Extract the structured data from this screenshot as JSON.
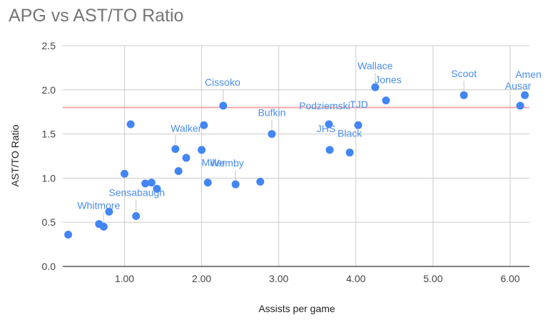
{
  "chart_data": {
    "type": "scatter",
    "title": "APG vs AST/TO Ratio",
    "xlabel": "Assists per game",
    "ylabel": "AST/TO Ratio",
    "xlim": [
      0.2,
      6.25
    ],
    "ylim": [
      0,
      2.5
    ],
    "x_ticks": [
      1,
      2,
      3,
      4,
      5,
      6
    ],
    "x_tick_labels": [
      "1.00",
      "2.00",
      "3.00",
      "4.00",
      "5.00",
      "6.00"
    ],
    "y_ticks": [
      0,
      0.5,
      1,
      1.5,
      2,
      2.5
    ],
    "y_tick_labels": [
      "0.0",
      "0.5",
      "1.0",
      "1.5",
      "2.0",
      "2.5"
    ],
    "reference_line": {
      "y": 1.8,
      "color": "#f4a8a8"
    },
    "point_color": "#4285f4",
    "label_color": "#4a8df0",
    "grid": true,
    "points": [
      {
        "x": 0.27,
        "y": 0.36,
        "label": ""
      },
      {
        "x": 0.67,
        "y": 0.48,
        "label": ""
      },
      {
        "x": 0.73,
        "y": 0.45,
        "label": "Whitmore"
      },
      {
        "x": 0.8,
        "y": 0.62,
        "label": ""
      },
      {
        "x": 1.0,
        "y": 1.05,
        "label": ""
      },
      {
        "x": 1.08,
        "y": 1.61,
        "label": ""
      },
      {
        "x": 1.15,
        "y": 0.57,
        "label": "Sensabaugh"
      },
      {
        "x": 1.27,
        "y": 0.94,
        "label": ""
      },
      {
        "x": 1.35,
        "y": 0.95,
        "label": ""
      },
      {
        "x": 1.42,
        "y": 0.88,
        "label": ""
      },
      {
        "x": 1.66,
        "y": 1.33,
        "label": "Walker"
      },
      {
        "x": 1.7,
        "y": 1.08,
        "label": ""
      },
      {
        "x": 1.8,
        "y": 1.23,
        "label": ""
      },
      {
        "x": 2.0,
        "y": 1.32,
        "label": ""
      },
      {
        "x": 2.03,
        "y": 1.6,
        "label": ""
      },
      {
        "x": 2.08,
        "y": 0.95,
        "label": "Miller"
      },
      {
        "x": 2.28,
        "y": 1.82,
        "label": "Cissoko"
      },
      {
        "x": 2.44,
        "y": 0.93,
        "label": "Wemby"
      },
      {
        "x": 2.76,
        "y": 0.96,
        "label": ""
      },
      {
        "x": 2.91,
        "y": 1.5,
        "label": "Bufkin"
      },
      {
        "x": 3.65,
        "y": 1.61,
        "label": "Podziemski"
      },
      {
        "x": 3.66,
        "y": 1.32,
        "label": "JHS"
      },
      {
        "x": 3.92,
        "y": 1.29,
        "label": "Black"
      },
      {
        "x": 4.03,
        "y": 1.6,
        "label": "TJD"
      },
      {
        "x": 4.25,
        "y": 2.03,
        "label": "Wallace"
      },
      {
        "x": 4.39,
        "y": 1.88,
        "label": "Jones"
      },
      {
        "x": 5.4,
        "y": 1.94,
        "label": "Scoot"
      },
      {
        "x": 6.13,
        "y": 1.82,
        "label": "Ausar"
      },
      {
        "x": 6.19,
        "y": 1.94,
        "label": "Amen"
      }
    ]
  }
}
